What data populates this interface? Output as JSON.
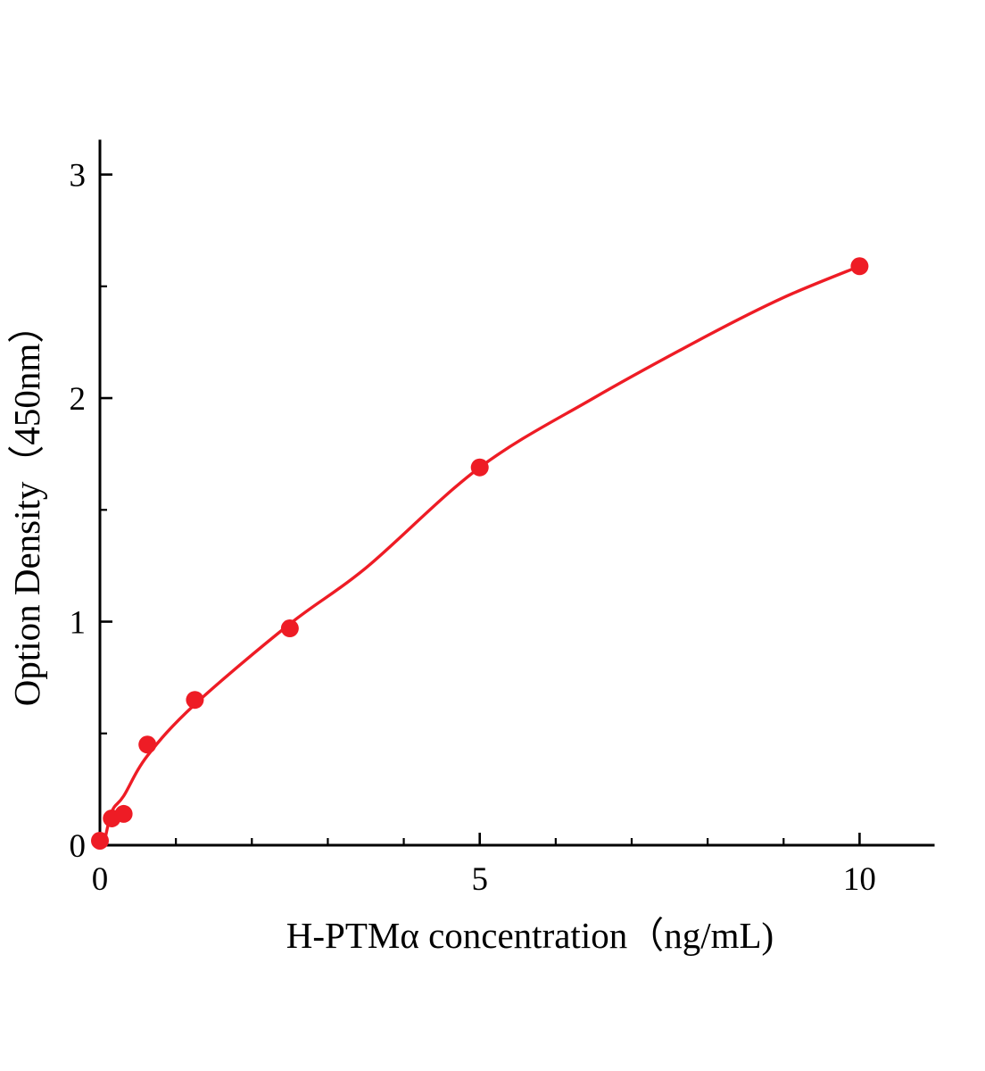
{
  "figure": {
    "background": "#ffffff",
    "axis_color": "#000000",
    "accent_color": "#ee1c25"
  },
  "chart_data": {
    "type": "scatter",
    "title": "",
    "xlabel": "H-PTMα concentration（ng/mL)",
    "ylabel": "Option Density（450nm）",
    "xlim": [
      0,
      10.97
    ],
    "ylim": [
      0,
      3.15
    ],
    "xticks": [
      0,
      5,
      10
    ],
    "xtick_labels": [
      "0",
      "5",
      "10"
    ],
    "yticks": [
      0,
      1,
      2,
      3
    ],
    "ytick_labels": [
      "0",
      "1",
      "2",
      "3"
    ],
    "minor_xticks": [
      1,
      2,
      3,
      4,
      6,
      7,
      8,
      9
    ],
    "minor_yticks": [
      0.5,
      1.5,
      2.5
    ],
    "grid": false,
    "legend": "none",
    "marker_color": "#ee1c25",
    "line_color": "#ee1c25",
    "series": [
      {
        "x": [
          0,
          0.156,
          0.3125,
          0.625,
          1.25,
          2.5,
          5,
          10
        ],
        "y": [
          0.02,
          0.12,
          0.14,
          0.45,
          0.65,
          0.97,
          1.69,
          2.59
        ]
      }
    ],
    "fit_curve": {
      "x": [
        0.05,
        0.156,
        0.3125,
        0.625,
        1.25,
        2.5,
        3.5,
        5,
        6.5,
        8,
        9,
        10
      ],
      "y": [
        0.0,
        0.15,
        0.22,
        0.4,
        0.63,
        0.99,
        1.24,
        1.69,
        2.0,
        2.28,
        2.45,
        2.59
      ]
    }
  }
}
